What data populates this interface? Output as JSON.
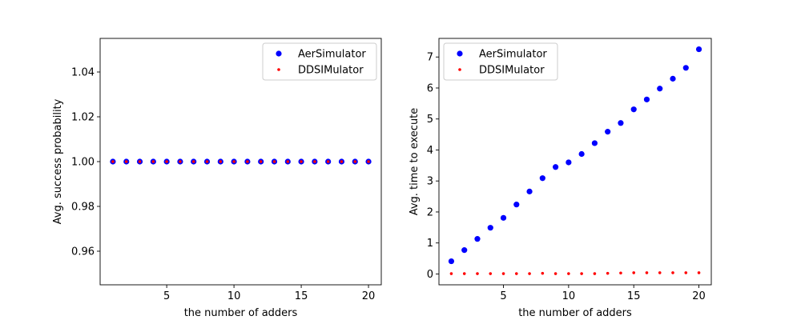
{
  "chart_data": [
    {
      "type": "scatter",
      "xlabel": "the number of adders",
      "ylabel": "Avg. success probability",
      "xlim": [
        0.05,
        20.95
      ],
      "ylim": [
        0.945,
        1.055
      ],
      "xticks": [
        5,
        10,
        15,
        20
      ],
      "yticks": [
        0.96,
        0.98,
        1.0,
        1.02,
        1.04
      ],
      "ytick_labels": [
        "0.96",
        "0.98",
        "1.00",
        "1.02",
        "1.04"
      ],
      "grid": false,
      "legend_position": "upper right",
      "x": [
        1,
        2,
        3,
        4,
        5,
        6,
        7,
        8,
        9,
        10,
        11,
        12,
        13,
        14,
        15,
        16,
        17,
        18,
        19,
        20
      ],
      "series": [
        {
          "name": "AerSimulator",
          "color": "#0000ff",
          "marker": "large-dot",
          "values": [
            1,
            1,
            1,
            1,
            1,
            1,
            1,
            1,
            1,
            1,
            1,
            1,
            1,
            1,
            1,
            1,
            1,
            1,
            1,
            1
          ]
        },
        {
          "name": "DDSIMulator",
          "color": "#ff0000",
          "marker": "small-dot",
          "values": [
            1,
            1,
            1,
            1,
            1,
            1,
            1,
            1,
            1,
            1,
            1,
            1,
            1,
            1,
            1,
            1,
            1,
            1,
            1,
            1
          ]
        }
      ]
    },
    {
      "type": "scatter",
      "xlabel": "the number of adders",
      "ylabel": "Avg. time to execute",
      "xlim": [
        0.05,
        20.95
      ],
      "ylim": [
        -0.35,
        7.6
      ],
      "xticks": [
        5,
        10,
        15,
        20
      ],
      "yticks": [
        0,
        1,
        2,
        3,
        4,
        5,
        6,
        7
      ],
      "ytick_labels": [
        "0",
        "1",
        "2",
        "3",
        "4",
        "5",
        "6",
        "7"
      ],
      "grid": false,
      "legend_position": "upper left",
      "x": [
        1,
        2,
        3,
        4,
        5,
        6,
        7,
        8,
        9,
        10,
        11,
        12,
        13,
        14,
        15,
        16,
        17,
        18,
        19,
        20
      ],
      "series": [
        {
          "name": "AerSimulator",
          "color": "#0000ff",
          "marker": "large-dot",
          "values": [
            0.41,
            0.77,
            1.13,
            1.49,
            1.81,
            2.24,
            2.66,
            3.09,
            3.45,
            3.6,
            3.87,
            4.22,
            4.59,
            4.87,
            5.31,
            5.63,
            5.98,
            6.3,
            6.65,
            7.25
          ]
        },
        {
          "name": "DDSIMulator",
          "color": "#ff0000",
          "marker": "small-dot",
          "values": [
            0.01,
            0.01,
            0.01,
            0.01,
            0.01,
            0.01,
            0.01,
            0.02,
            0.01,
            0.01,
            0.01,
            0.01,
            0.02,
            0.03,
            0.04,
            0.04,
            0.04,
            0.04,
            0.04,
            0.04
          ]
        }
      ]
    }
  ]
}
